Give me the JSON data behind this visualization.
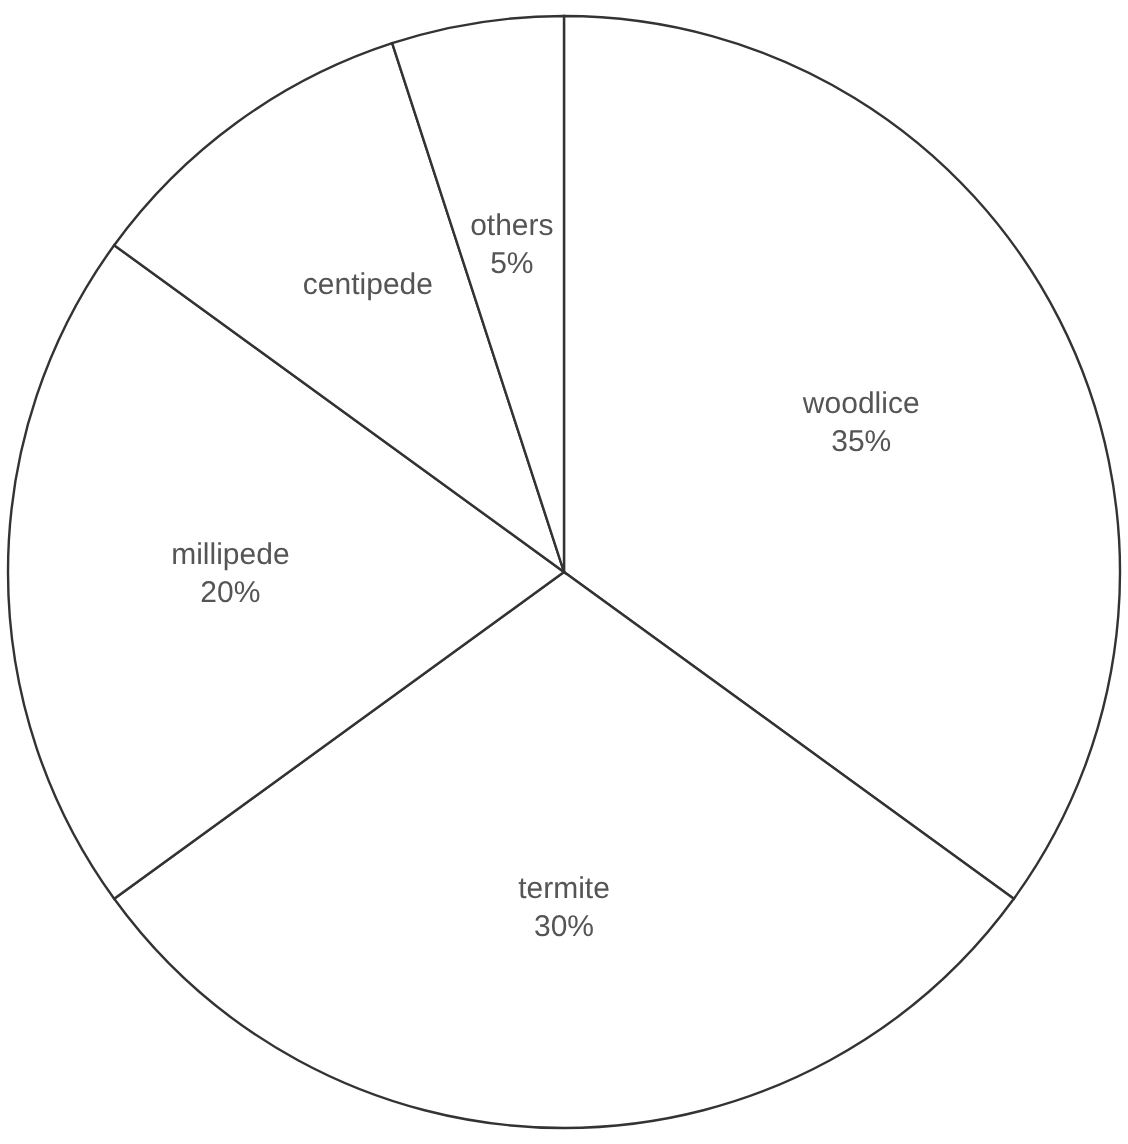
{
  "chart_data": {
    "type": "pie",
    "categories": [
      "woodlice",
      "termite",
      "millipede",
      "centipede",
      "others"
    ],
    "values": [
      35,
      30,
      20,
      10,
      5
    ],
    "value_labels": [
      "35%",
      "30%",
      "20%",
      null,
      "5%"
    ],
    "colors": [
      "#ffffff",
      "#ffffff",
      "#ffffff",
      "#ffffff",
      "#ffffff"
    ]
  }
}
